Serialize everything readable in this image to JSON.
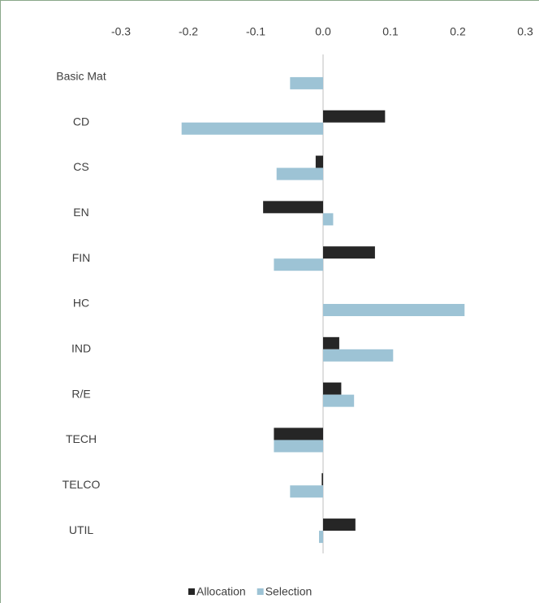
{
  "chart_data": {
    "type": "bar",
    "orientation": "horizontal",
    "categories": [
      "Basic Mat",
      "CD",
      "CS",
      "EN",
      "FIN",
      "HC",
      "IND",
      "R/E",
      "TECH",
      "TELCO",
      "UTIL"
    ],
    "series": [
      {
        "name": "Allocation",
        "color": "#262626",
        "values": [
          0,
          0.092,
          -0.011,
          -0.089,
          0.077,
          0,
          0.024,
          0.027,
          -0.073,
          -0.002,
          0.048
        ]
      },
      {
        "name": "Selection",
        "color": "#9dc3d5",
        "values": [
          -0.049,
          -0.21,
          -0.069,
          0.015,
          -0.073,
          0.21,
          0.104,
          0.046,
          -0.073,
          -0.049,
          -0.006
        ]
      }
    ],
    "xlim": [
      -0.3,
      0.3
    ],
    "xticks": [
      -0.3,
      -0.2,
      -0.1,
      {
        "value": 0,
        "label": "0.0"
      },
      0.1,
      0.2,
      0.3
    ],
    "legend": "bottom"
  }
}
